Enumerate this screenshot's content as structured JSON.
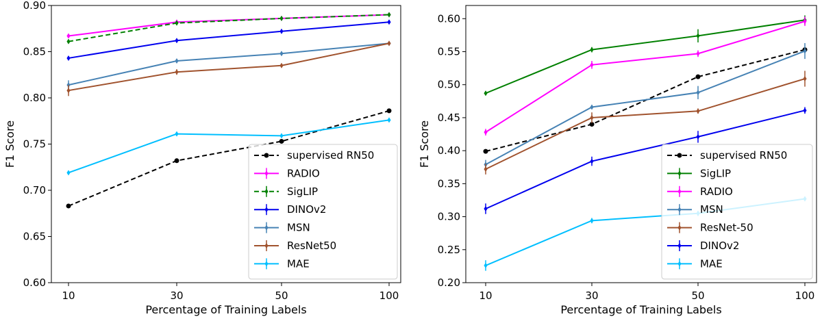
{
  "chart_data": [
    {
      "type": "line",
      "title": "",
      "xlabel": "Percentage of Training Labels",
      "ylabel": "F1 Score",
      "categories": [
        "10",
        "30",
        "50",
        "100"
      ],
      "ylim": [
        0.6,
        0.9
      ],
      "yticks": [
        "0.60",
        "0.65",
        "0.70",
        "0.75",
        "0.80",
        "0.85",
        "0.90"
      ],
      "yticks_values": [
        0.6,
        0.65,
        0.7,
        0.75,
        0.8,
        0.85,
        0.9
      ],
      "legend_position": "lower-right",
      "series": [
        {
          "name": "supervised RN50",
          "color": "#000000",
          "dashed": true,
          "marker": "dot",
          "values": [
            0.683,
            0.732,
            0.753,
            0.786
          ],
          "err": [
            0,
            0,
            0,
            0
          ]
        },
        {
          "name": "RADIO",
          "color": "#ff00ff",
          "dashed": false,
          "marker": "diamond",
          "values": [
            0.867,
            0.882,
            0.886,
            0.89
          ],
          "err": [
            0.002,
            0.002,
            0.002,
            0.002
          ]
        },
        {
          "name": "SigLIP",
          "color": "#008000",
          "dashed": true,
          "marker": "diamond",
          "values": [
            0.861,
            0.881,
            0.886,
            0.89
          ],
          "err": [
            0.002,
            0.002,
            0.002,
            0.002
          ]
        },
        {
          "name": "DINOv2",
          "color": "#0000ee",
          "dashed": false,
          "marker": "diamond",
          "values": [
            0.843,
            0.862,
            0.872,
            0.882
          ],
          "err": [
            0.002,
            0.002,
            0.002,
            0.002
          ]
        },
        {
          "name": "MSN",
          "color": "#4682b4",
          "dashed": false,
          "marker": "diamond",
          "values": [
            0.814,
            0.84,
            0.848,
            0.859
          ],
          "err": [
            0.005,
            0.002,
            0.002,
            0.002
          ]
        },
        {
          "name": "ResNet50",
          "color": "#a0522d",
          "dashed": false,
          "marker": "diamond",
          "values": [
            0.808,
            0.828,
            0.835,
            0.859
          ],
          "err": [
            0.006,
            0.003,
            0.002,
            0.002
          ]
        },
        {
          "name": "MAE",
          "color": "#00bfff",
          "dashed": false,
          "marker": "diamond",
          "values": [
            0.719,
            0.761,
            0.759,
            0.776
          ],
          "err": [
            0.002,
            0.002,
            0.002,
            0.002
          ]
        }
      ]
    },
    {
      "type": "line",
      "title": "",
      "xlabel": "Percentage of Training Labels",
      "ylabel": "F1 Score",
      "categories": [
        "10",
        "30",
        "50",
        "100"
      ],
      "ylim": [
        0.2,
        0.62
      ],
      "yticks": [
        "0.20",
        "0.25",
        "0.30",
        "0.35",
        "0.40",
        "0.45",
        "0.50",
        "0.55",
        "0.60"
      ],
      "yticks_values": [
        0.2,
        0.25,
        0.3,
        0.35,
        0.4,
        0.45,
        0.5,
        0.55,
        0.6
      ],
      "legend_position": "lower-right",
      "series": [
        {
          "name": "supervised RN50",
          "color": "#000000",
          "dashed": true,
          "marker": "dot",
          "values": [
            0.399,
            0.44,
            0.512,
            0.553
          ],
          "err": [
            0,
            0,
            0,
            0
          ]
        },
        {
          "name": "SigLIP",
          "color": "#008000",
          "dashed": false,
          "marker": "diamond",
          "values": [
            0.487,
            0.553,
            0.574,
            0.598
          ],
          "err": [
            0.003,
            0.004,
            0.01,
            0.007
          ]
        },
        {
          "name": "RADIO",
          "color": "#ff00ff",
          "dashed": false,
          "marker": "diamond",
          "values": [
            0.428,
            0.53,
            0.547,
            0.596
          ],
          "err": [
            0.005,
            0.006,
            0.005,
            0.007
          ]
        },
        {
          "name": "MSN",
          "color": "#4682b4",
          "dashed": false,
          "marker": "diamond",
          "values": [
            0.379,
            0.466,
            0.488,
            0.551
          ],
          "err": [
            0.007,
            0.003,
            0.01,
            0.012
          ]
        },
        {
          "name": "ResNet-50",
          "color": "#a0522d",
          "dashed": false,
          "marker": "diamond",
          "values": [
            0.372,
            0.45,
            0.46,
            0.509
          ],
          "err": [
            0.008,
            0.008,
            0.004,
            0.012
          ]
        },
        {
          "name": "DINOv2",
          "color": "#0000ee",
          "dashed": false,
          "marker": "diamond",
          "values": [
            0.312,
            0.384,
            0.421,
            0.461
          ],
          "err": [
            0.008,
            0.007,
            0.009,
            0.005
          ]
        },
        {
          "name": "MAE",
          "color": "#00bfff",
          "dashed": false,
          "marker": "diamond",
          "values": [
            0.226,
            0.294,
            0.305,
            0.327
          ],
          "err": [
            0.008,
            0.004,
            0.004,
            0.003
          ]
        }
      ]
    }
  ]
}
